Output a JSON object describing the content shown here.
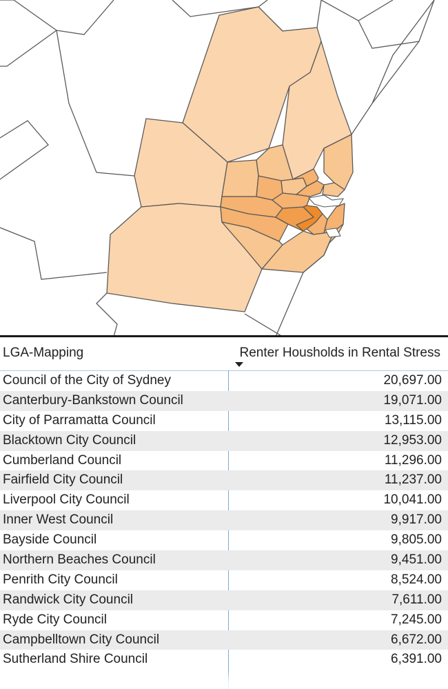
{
  "map": {
    "fill_colors": {
      "lightest": "#fbd5ae",
      "light": "#f8c690",
      "medium": "#f5b270",
      "dark": "#f19d4c",
      "darkest": "#ee8a2a",
      "outline": "#5a5a5a",
      "background": "#ffffff"
    }
  },
  "table": {
    "columns": [
      "LGA-Mapping",
      "Renter Housholds in Rental Stress"
    ],
    "sort_column": "Renter Housholds in Rental Stress",
    "sort_direction": "descending",
    "rows": [
      {
        "name": "Council of the City of Sydney",
        "value": "20,697.00"
      },
      {
        "name": "Canterbury-Bankstown Council",
        "value": "19,071.00"
      },
      {
        "name": "City of Parramatta Council",
        "value": "13,115.00"
      },
      {
        "name": "Blacktown City Council",
        "value": "12,953.00"
      },
      {
        "name": "Cumberland Council",
        "value": "11,296.00"
      },
      {
        "name": "Fairfield City Council",
        "value": "11,237.00"
      },
      {
        "name": "Liverpool City Council",
        "value": "10,041.00"
      },
      {
        "name": "Inner West Council",
        "value": "9,917.00"
      },
      {
        "name": "Bayside Council",
        "value": "9,805.00"
      },
      {
        "name": "Northern Beaches Council",
        "value": "9,451.00"
      },
      {
        "name": "Penrith City Council",
        "value": "8,524.00"
      },
      {
        "name": "Randwick City Council",
        "value": "7,611.00"
      },
      {
        "name": "Ryde City Council",
        "value": "7,245.00"
      },
      {
        "name": "Campbelltown City Council",
        "value": "6,672.00"
      },
      {
        "name": "Sutherland Shire Council",
        "value": "6,391.00"
      }
    ]
  }
}
